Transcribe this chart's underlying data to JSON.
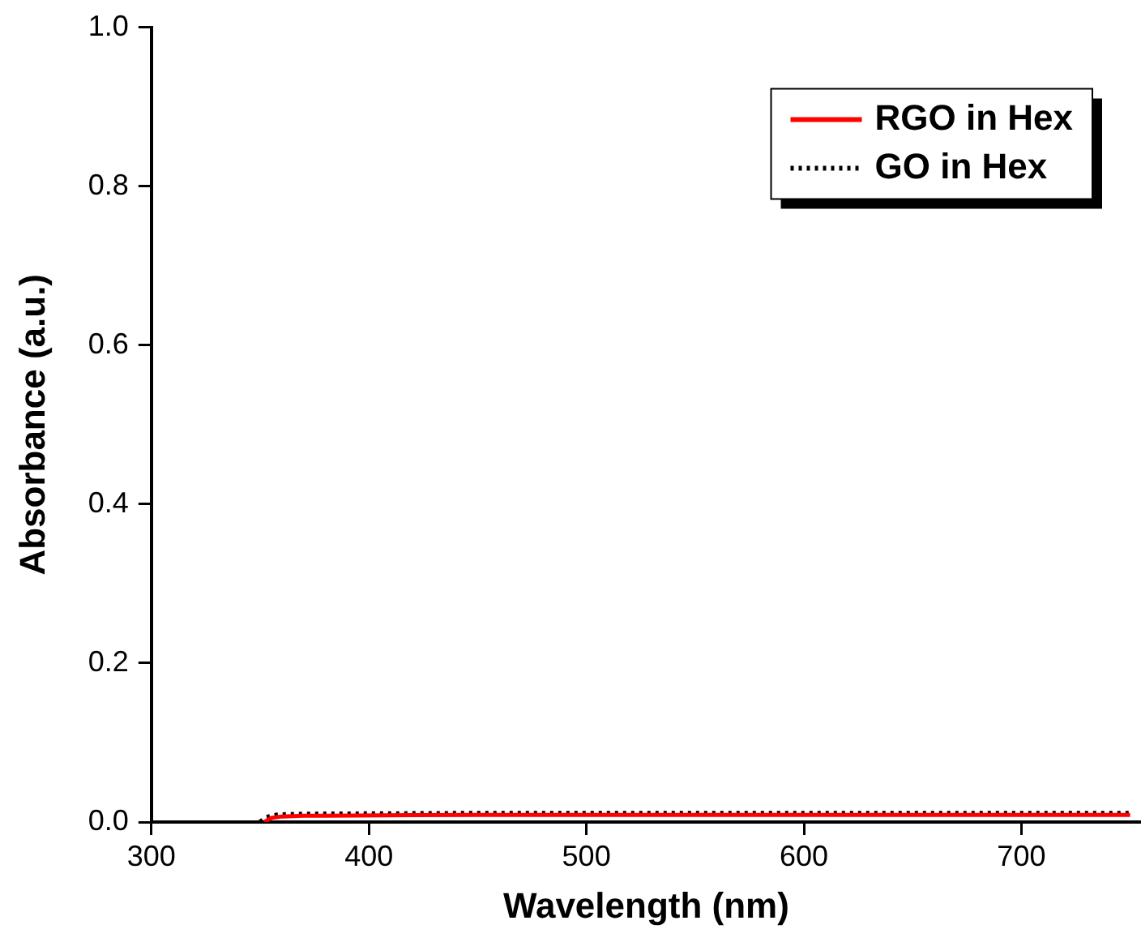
{
  "chart_data": {
    "type": "line",
    "xlabel": "Wavelength (nm)",
    "ylabel": "Absorbance (a.u.)",
    "xlim": [
      300,
      755
    ],
    "xticks": [
      300,
      400,
      500,
      600,
      700
    ],
    "ylim": [
      0,
      1
    ],
    "yticks": [
      {
        "value": 0,
        "label": "0.0"
      },
      0.2,
      0.4,
      0.6,
      0.8,
      {
        "value": 1,
        "label": "1.0"
      }
    ],
    "grid": false,
    "legend": "top right",
    "marker": "none",
    "series": [
      {
        "name": "RGO in Hex",
        "color": "#ff0000",
        "line_style": "solid",
        "x": [
          352,
          355,
          360,
          370,
          380,
          450,
          600,
          750
        ],
        "values": [
          0,
          0.005,
          0.007,
          0.008,
          0.008,
          0.009,
          0.009,
          0.009
        ]
      },
      {
        "name": "GO in Hex",
        "color": "#000000",
        "line_style": "dotted",
        "x": [
          350,
          353,
          358,
          370,
          450,
          600,
          750
        ],
        "values": [
          0,
          0.006,
          0.009,
          0.01,
          0.011,
          0.011,
          0.011
        ]
      }
    ]
  }
}
